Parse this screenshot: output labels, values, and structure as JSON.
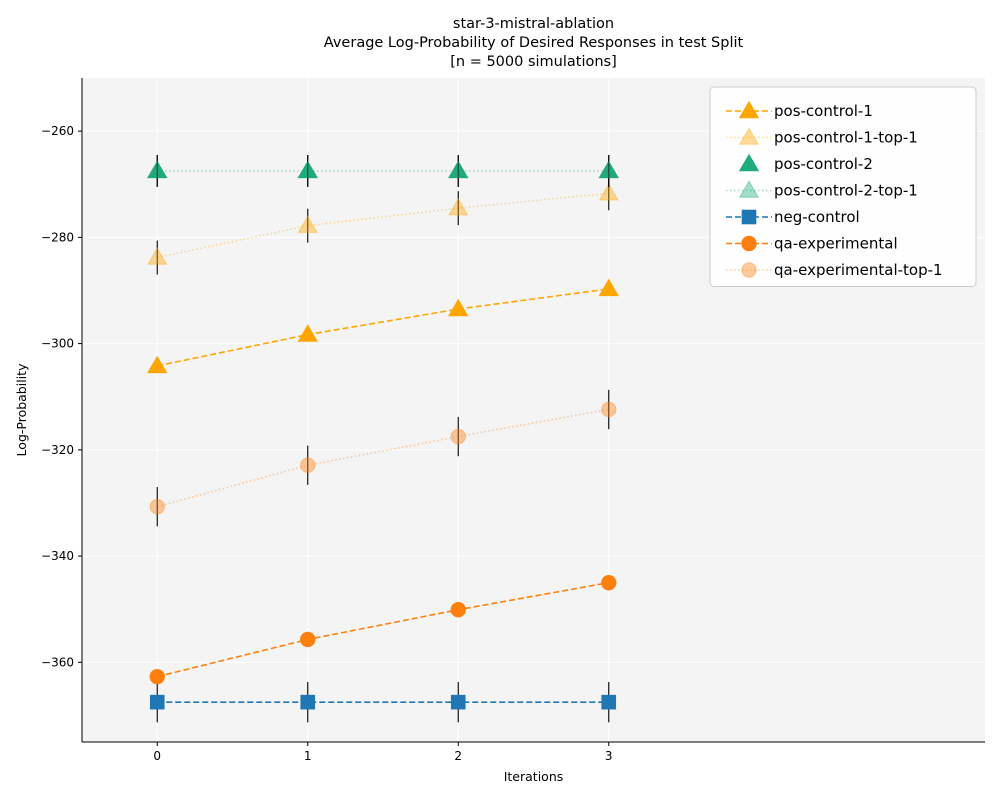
{
  "chart_data": {
    "type": "line",
    "title_lines": [
      "star-3-mistral-ablation",
      "Average Log-Probability of Desired Responses in test Split",
      "[n = 5000 simulations]"
    ],
    "xlabel": "Iterations",
    "ylabel": "Log-Probability",
    "x": [
      0,
      1,
      2,
      3
    ],
    "x_ticks": [
      0,
      1,
      2,
      3
    ],
    "xlim": [
      -0.5,
      5.5
    ],
    "ylim": [
      -375,
      -250
    ],
    "y_ticks": [
      -360,
      -340,
      -320,
      -300,
      -280,
      -260
    ],
    "grid": true,
    "legend_position": "top-right",
    "series": [
      {
        "name": "pos-control-1",
        "values": [
          -304.2,
          -298.3,
          -293.5,
          -289.7
        ],
        "error": [
          1.0,
          1.0,
          1.0,
          1.0
        ],
        "color": "#FFA500",
        "marker": "triangle",
        "line": "dashed",
        "alpha": 1.0
      },
      {
        "name": "pos-control-1-top-1",
        "values": [
          -283.8,
          -277.8,
          -274.5,
          -271.7
        ],
        "error": [
          3.2,
          3.2,
          3.2,
          3.2
        ],
        "color": "#FFA500",
        "marker": "triangle",
        "line": "dotted",
        "alpha": 0.4
      },
      {
        "name": "pos-control-2",
        "values": [
          -267.5,
          -267.5,
          -267.5,
          -267.5
        ],
        "error": [
          3.0,
          3.0,
          3.0,
          3.0
        ],
        "color": "#1FAB7E",
        "marker": "triangle",
        "line": "none",
        "alpha": 1.0
      },
      {
        "name": "pos-control-2-top-1",
        "values": [
          -267.5,
          -267.5,
          -267.5,
          -267.5
        ],
        "error": [
          3.0,
          3.0,
          3.0,
          3.0
        ],
        "color": "#1FAB7E",
        "marker": "triangle",
        "line": "dotted",
        "alpha": 0.4
      },
      {
        "name": "neg-control",
        "values": [
          -367.5,
          -367.5,
          -367.5,
          -367.5
        ],
        "error": [
          3.8,
          3.8,
          3.8,
          3.8
        ],
        "color": "#1F77B4",
        "marker": "square",
        "line": "dashed",
        "alpha": 1.0
      },
      {
        "name": "qa-experimental",
        "values": [
          -362.7,
          -355.7,
          -350.1,
          -345.0
        ],
        "error": [
          1.3,
          1.3,
          1.3,
          1.3
        ],
        "color": "#FF7F0E",
        "marker": "circle",
        "line": "dashed",
        "alpha": 1.0
      },
      {
        "name": "qa-experimental-top-1",
        "values": [
          -330.7,
          -322.9,
          -317.5,
          -312.4
        ],
        "error": [
          3.7,
          3.7,
          3.7,
          3.7
        ],
        "color": "#FF7F0E",
        "marker": "circle",
        "line": "dotted",
        "alpha": 0.4
      }
    ]
  }
}
